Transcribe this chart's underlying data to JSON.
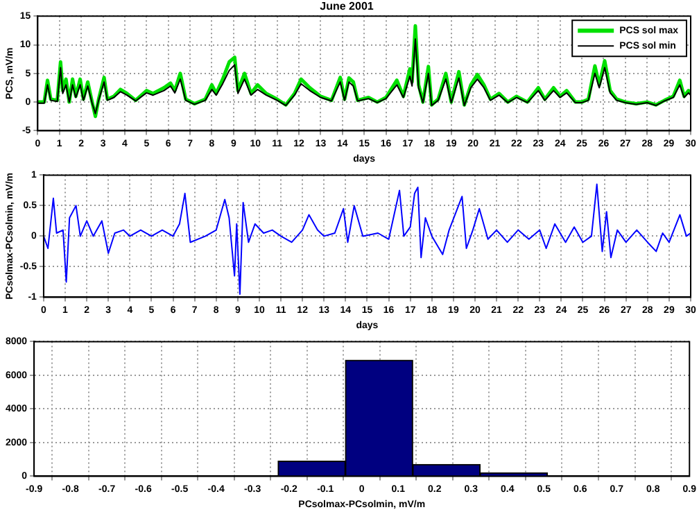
{
  "chart_data": [
    {
      "type": "line",
      "title": "June 2001",
      "xlabel": "days",
      "ylabel": "PCS, mV/m",
      "xlim": [
        0,
        30
      ],
      "xticks": [
        0,
        1,
        2,
        3,
        4,
        5,
        6,
        7,
        8,
        9,
        10,
        11,
        12,
        13,
        14,
        15,
        16,
        17,
        18,
        19,
        20,
        21,
        22,
        23,
        24,
        25,
        26,
        27,
        28,
        29,
        30
      ],
      "ylim": [
        -5,
        15
      ],
      "yticks": [
        -5,
        0,
        5,
        10,
        15
      ],
      "grid": true,
      "legend": "top right",
      "series": [
        {
          "name": "PCS sol max",
          "color": "#00e000",
          "x": [
            0,
            0.3,
            0.45,
            0.6,
            0.9,
            1.05,
            1.15,
            1.3,
            1.45,
            1.6,
            1.75,
            1.95,
            2.1,
            2.3,
            2.5,
            2.65,
            2.8,
            3.05,
            3.2,
            3.5,
            3.8,
            4.1,
            4.5,
            5,
            5.3,
            5.8,
            6.1,
            6.3,
            6.55,
            6.8,
            7.2,
            7.7,
            8,
            8.2,
            8.5,
            8.8,
            9.05,
            9.2,
            9.5,
            9.8,
            10.1,
            10.5,
            11,
            11.4,
            11.8,
            12.1,
            12.5,
            13,
            13.5,
            13.9,
            14.1,
            14.3,
            14.5,
            14.7,
            15.2,
            15.6,
            16,
            16.5,
            16.8,
            17.1,
            17.2,
            17.35,
            17.5,
            17.7,
            17.95,
            18.1,
            18.4,
            18.75,
            19,
            19.35,
            19.6,
            19.9,
            20.2,
            20.5,
            20.8,
            21.2,
            21.6,
            22,
            22.5,
            23,
            23.3,
            23.7,
            24,
            24.3,
            24.7,
            25,
            25.3,
            25.6,
            25.8,
            26.05,
            26.3,
            26.6,
            27,
            27.5,
            28,
            28.4,
            28.8,
            29.2,
            29.5,
            29.7,
            29.9,
            30
          ],
          "values": [
            0,
            0,
            3.8,
            0.5,
            0.3,
            7,
            2,
            4,
            0,
            4,
            1,
            4,
            0.5,
            3.5,
            0,
            -2.5,
            0.5,
            4.3,
            0.5,
            1,
            2.2,
            1.5,
            0.3,
            2,
            1.5,
            2.5,
            3.3,
            2,
            5,
            0.5,
            -0.3,
            0.5,
            3,
            1.5,
            4,
            7,
            7.8,
            2,
            5,
            1.5,
            3,
            1.5,
            0.5,
            -0.5,
            1.5,
            4,
            2.5,
            1,
            0.3,
            4.3,
            0.5,
            4.2,
            3.5,
            0.3,
            0.8,
            0,
            0.8,
            3.8,
            1,
            5.8,
            3.5,
            13.3,
            3,
            0,
            6.2,
            -0.5,
            0.5,
            5,
            0,
            5.3,
            -0.5,
            3,
            4.8,
            3,
            0.5,
            1.5,
            0,
            1,
            0,
            2.5,
            0.5,
            2.5,
            1,
            2,
            0,
            0,
            0.5,
            6.3,
            3,
            7.2,
            2,
            0.5,
            0,
            -0.3,
            0,
            -0.5,
            0.3,
            1,
            3.8,
            1,
            2,
            1.5
          ]
        },
        {
          "name": "PCS sol min",
          "color": "#000000",
          "x": [
            0,
            0.3,
            0.45,
            0.6,
            0.9,
            1.05,
            1.15,
            1.3,
            1.45,
            1.6,
            1.75,
            1.95,
            2.1,
            2.3,
            2.5,
            2.65,
            2.8,
            3.05,
            3.2,
            3.5,
            3.8,
            4.1,
            4.5,
            5,
            5.3,
            5.8,
            6.1,
            6.3,
            6.55,
            6.8,
            7.2,
            7.7,
            8,
            8.2,
            8.5,
            8.8,
            9.05,
            9.2,
            9.5,
            9.8,
            10.1,
            10.5,
            11,
            11.4,
            11.8,
            12.1,
            12.5,
            13,
            13.5,
            13.9,
            14.1,
            14.3,
            14.5,
            14.7,
            15.2,
            15.6,
            16,
            16.5,
            16.8,
            17.1,
            17.2,
            17.35,
            17.5,
            17.7,
            17.95,
            18.1,
            18.4,
            18.75,
            19,
            19.35,
            19.6,
            19.9,
            20.2,
            20.5,
            20.8,
            21.2,
            21.6,
            22,
            22.5,
            23,
            23.3,
            23.7,
            24,
            24.3,
            24.7,
            25,
            25.3,
            25.6,
            25.8,
            26.05,
            26.3,
            26.6,
            27,
            27.5,
            28,
            28.4,
            28.8,
            29.2,
            29.5,
            29.7,
            29.9,
            30
          ],
          "values": [
            -0.2,
            -0.2,
            3,
            0.3,
            0.1,
            6,
            1.5,
            3,
            0,
            3,
            0.8,
            3,
            0.3,
            2.8,
            -0.2,
            -2,
            0.3,
            3.5,
            0.3,
            0.8,
            1.8,
            1.2,
            0.2,
            1.6,
            1.2,
            2,
            2.8,
            1.6,
            4,
            0.3,
            -0.4,
            0.3,
            2.2,
            1.2,
            3.2,
            5.5,
            6.5,
            1.5,
            4,
            1.2,
            2.2,
            1.2,
            0.3,
            -0.6,
            1.2,
            3.2,
            2,
            0.8,
            0.2,
            3.5,
            0.3,
            3.5,
            2.8,
            0.2,
            0.6,
            -0.1,
            0.6,
            3,
            0.8,
            4.5,
            2.8,
            11,
            2.5,
            -0.1,
            5,
            -0.6,
            0.3,
            4,
            -0.1,
            4.2,
            -0.6,
            2.5,
            4,
            2.5,
            0.3,
            1.2,
            -0.1,
            0.8,
            -0.1,
            2,
            0.3,
            2,
            0.8,
            1.6,
            -0.1,
            -0.1,
            0.3,
            5,
            2.5,
            6,
            1.6,
            0.3,
            -0.1,
            -0.4,
            -0.1,
            -0.6,
            0.2,
            0.8,
            3,
            0.8,
            1.6,
            1.2
          ]
        }
      ]
    },
    {
      "type": "line",
      "xlabel": "days",
      "ylabel": "PCsolmax-PCsolmin, mV/m",
      "xlim": [
        0,
        30
      ],
      "xticks": [
        0,
        1,
        2,
        3,
        4,
        5,
        6,
        7,
        8,
        9,
        10,
        11,
        12,
        13,
        14,
        15,
        16,
        17,
        18,
        19,
        20,
        21,
        22,
        23,
        24,
        25,
        26,
        27,
        28,
        29,
        30
      ],
      "ylim": [
        -1,
        1
      ],
      "yticks": [
        -1,
        -0.5,
        0,
        0.5,
        1
      ],
      "grid": true,
      "series": [
        {
          "color": "#0000ff",
          "x": [
            0,
            0.2,
            0.45,
            0.6,
            0.9,
            1.05,
            1.2,
            1.5,
            1.7,
            2,
            2.3,
            2.7,
            3,
            3.3,
            3.7,
            4,
            4.5,
            5,
            5.5,
            6,
            6.3,
            6.55,
            6.8,
            7.5,
            8,
            8.4,
            8.6,
            8.85,
            8.95,
            9.1,
            9.25,
            9.5,
            9.8,
            10.2,
            10.6,
            11,
            11.5,
            12,
            12.3,
            12.7,
            13,
            13.5,
            13.9,
            14.1,
            14.4,
            14.8,
            15.5,
            16,
            16.5,
            16.7,
            17,
            17.2,
            17.35,
            17.5,
            17.7,
            18,
            18.5,
            18.8,
            19.4,
            19.6,
            19.9,
            20.2,
            20.6,
            21,
            21.5,
            22,
            22.5,
            23,
            23.3,
            23.7,
            24.2,
            24.6,
            25,
            25.4,
            25.65,
            25.9,
            26.1,
            26.3,
            26.6,
            27,
            27.5,
            28,
            28.4,
            28.7,
            29,
            29.5,
            29.8,
            30
          ],
          "values": [
            0,
            -0.2,
            0.62,
            0.05,
            0.1,
            -0.75,
            0.3,
            0.5,
            0,
            0.25,
            0,
            0.25,
            -0.28,
            0.05,
            0.1,
            0,
            0.1,
            0,
            0.1,
            0,
            0.2,
            0.7,
            -0.1,
            0,
            0.1,
            0.6,
            0.3,
            -0.65,
            0.2,
            -0.95,
            0.55,
            -0.1,
            0.2,
            0.05,
            0.1,
            0,
            -0.1,
            0.1,
            0.35,
            0.1,
            0,
            0.05,
            0.45,
            -0.1,
            0.5,
            0,
            0.05,
            -0.05,
            0.75,
            0,
            0.15,
            0.7,
            0.8,
            -0.35,
            0.3,
            0,
            -0.3,
            0.1,
            0.65,
            -0.2,
            0.1,
            0.45,
            -0.05,
            0.1,
            -0.1,
            0.1,
            -0.05,
            0.1,
            -0.2,
            0.2,
            -0.1,
            0.15,
            -0.1,
            0,
            0.85,
            -0.25,
            0.4,
            -0.35,
            0.1,
            -0.1,
            0.1,
            -0.1,
            -0.25,
            0.05,
            -0.1,
            0.35,
            0,
            0.05
          ]
        }
      ]
    },
    {
      "type": "histogram",
      "xlabel": "PCsolmax-PCsolmin, mV/m",
      "xlim": [
        -0.9,
        0.9
      ],
      "xticks": [
        -0.9,
        -0.8,
        -0.7,
        -0.6,
        -0.5,
        -0.4,
        -0.3,
        -0.2,
        -0.1,
        0,
        0.1,
        0.2,
        0.3,
        0.4,
        0.5,
        0.6,
        0.7,
        0.8,
        0.9
      ],
      "ylim": [
        0,
        8000
      ],
      "yticks": [
        0,
        2000,
        4000,
        6000,
        8000
      ],
      "grid": true,
      "color": "#000080",
      "bins": [
        -0.23,
        -0.045,
        0.14,
        0.325,
        0.51
      ],
      "values": [
        900,
        6900,
        700,
        200
      ]
    }
  ]
}
